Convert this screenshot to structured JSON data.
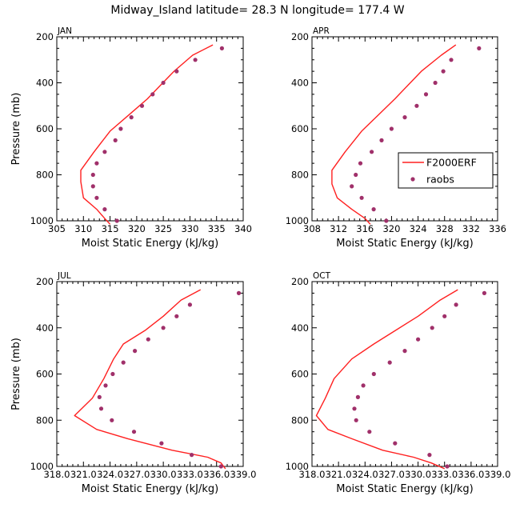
{
  "title": "Midway_Island  latitude= 28.3 N longitude= 177.4 W",
  "colors": {
    "model": "#ff2020",
    "obs": "#a0306a",
    "axis": "#000000"
  },
  "legend": {
    "model_label": "F2000ERF",
    "obs_label": "raobs",
    "placement": "right, in APR panel"
  },
  "chart_data": [
    {
      "type": "line",
      "panel": "JAN",
      "xlabel": "Moist Static Energy (kJ/kg)",
      "ylabel": "Pressure (mb)",
      "xlim": [
        305,
        340
      ],
      "ylim": [
        1000,
        200
      ],
      "xticks": [
        305,
        310,
        315,
        320,
        325,
        330,
        335,
        340
      ],
      "xtick_labels": [
        "305",
        "310",
        "315",
        "320",
        "325",
        "330",
        "335",
        "340"
      ],
      "yticks": [
        200,
        400,
        600,
        800,
        1000
      ],
      "series": [
        {
          "name": "F2000ERF",
          "style": "line",
          "x": [
            334.3,
            330.5,
            327.0,
            324.5,
            322.0,
            318.5,
            315.0,
            312.0,
            309.5,
            309.5,
            310.0,
            312.5,
            314.0,
            315.0
          ],
          "y": [
            235,
            280,
            350,
            410,
            470,
            540,
            610,
            700,
            780,
            830,
            900,
            950,
            990,
            1015
          ]
        },
        {
          "name": "raobs",
          "style": "markers",
          "x": [
            336.0,
            331.0,
            327.5,
            325.0,
            323.0,
            321.0,
            319.0,
            317.0,
            316.0,
            314.0,
            312.5,
            311.8,
            311.8,
            312.5,
            314.0,
            316.3
          ],
          "y": [
            250,
            300,
            350,
            400,
            450,
            500,
            550,
            600,
            650,
            700,
            750,
            800,
            850,
            900,
            950,
            1000
          ]
        }
      ]
    },
    {
      "type": "line",
      "panel": "APR",
      "xlabel": "Moist Static Energy (kJ/kg)",
      "ylabel": "",
      "xlim": [
        308,
        336
      ],
      "ylim": [
        1000,
        200
      ],
      "xticks": [
        308,
        312,
        316,
        320,
        324,
        328,
        332,
        336
      ],
      "xtick_labels": [
        "308",
        "312",
        "316",
        "320",
        "324",
        "328",
        "332",
        "336"
      ],
      "yticks": [
        200,
        400,
        600,
        800,
        1000
      ],
      "series": [
        {
          "name": "F2000ERF",
          "style": "line",
          "x": [
            329.7,
            327.5,
            324.5,
            322.5,
            320.5,
            318.0,
            315.5,
            313.0,
            311.0,
            311.0,
            311.8,
            314.0,
            316.0,
            316.8
          ],
          "y": [
            235,
            280,
            350,
            410,
            470,
            540,
            610,
            700,
            780,
            840,
            900,
            950,
            990,
            1015
          ]
        },
        {
          "name": "raobs",
          "style": "markers",
          "x": [
            333.2,
            329.0,
            327.8,
            326.6,
            325.2,
            323.8,
            322.0,
            320.0,
            318.5,
            317.0,
            315.3,
            314.6,
            314.0,
            315.5,
            317.3,
            319.2
          ],
          "y": [
            250,
            300,
            350,
            400,
            450,
            500,
            550,
            600,
            650,
            700,
            750,
            800,
            850,
            900,
            950,
            1000
          ]
        }
      ]
    },
    {
      "type": "line",
      "panel": "JUL",
      "xlabel": "Moist Static Energy (kJ/kg)",
      "ylabel": "Pressure (mb)",
      "xlim": [
        318.0,
        339.0
      ],
      "ylim": [
        1000,
        200
      ],
      "xticks": [
        318.0,
        321.0,
        324.0,
        327.0,
        330.0,
        333.0,
        336.0,
        339.0
      ],
      "xtick_labels": [
        "318.0",
        "321.0",
        "324.0",
        "327.0",
        "330.0",
        "333.0",
        "336.0",
        "339.0"
      ],
      "yticks": [
        200,
        400,
        600,
        800,
        1000
      ],
      "series": [
        {
          "name": "F2000ERF",
          "style": "line",
          "x": [
            334.2,
            332.0,
            330.0,
            328.0,
            325.5,
            324.4,
            323.3,
            322.0,
            320.0,
            322.5,
            326.0,
            331.0,
            335.0,
            336.5,
            337.0
          ],
          "y": [
            235,
            280,
            350,
            410,
            470,
            535,
            620,
            705,
            780,
            840,
            880,
            930,
            960,
            985,
            1010
          ]
        },
        {
          "name": "raobs",
          "style": "markers",
          "x": [
            338.5,
            333.0,
            331.5,
            330.0,
            328.3,
            326.8,
            325.5,
            324.3,
            323.5,
            322.8,
            323.0,
            324.2,
            326.7,
            329.8,
            333.2,
            336.5
          ],
          "y": [
            250,
            300,
            350,
            400,
            450,
            500,
            550,
            600,
            650,
            700,
            750,
            800,
            850,
            900,
            950,
            1000
          ]
        }
      ]
    },
    {
      "type": "line",
      "panel": "OCT",
      "xlabel": "Moist Static Energy (kJ/kg)",
      "ylabel": "",
      "xlim": [
        318.0,
        339.0
      ],
      "ylim": [
        1000,
        200
      ],
      "xticks": [
        318.0,
        321.0,
        324.0,
        327.0,
        330.0,
        333.0,
        336.0,
        339.0
      ],
      "xtick_labels": [
        "318.0",
        "321.0",
        "324.0",
        "327.0",
        "330.0",
        "333.0",
        "336.0",
        "339.0"
      ],
      "yticks": [
        200,
        400,
        600,
        800,
        1000
      ],
      "series": [
        {
          "name": "F2000ERF",
          "style": "line",
          "x": [
            334.5,
            332.5,
            330.0,
            327.5,
            325.0,
            322.5,
            320.5,
            319.5,
            318.5,
            319.8,
            322.5,
            326.0,
            329.5,
            331.5,
            333.0
          ],
          "y": [
            235,
            280,
            350,
            410,
            470,
            535,
            620,
            705,
            780,
            840,
            880,
            930,
            960,
            985,
            1010
          ]
        },
        {
          "name": "raobs",
          "style": "markers",
          "x": [
            337.5,
            334.3,
            333.0,
            331.6,
            330.0,
            328.5,
            326.8,
            325.0,
            323.8,
            323.2,
            322.8,
            323.0,
            324.5,
            327.4,
            331.3,
            333.3
          ],
          "y": [
            250,
            300,
            350,
            400,
            450,
            500,
            550,
            600,
            650,
            700,
            750,
            800,
            850,
            900,
            950,
            1000
          ]
        }
      ]
    }
  ]
}
